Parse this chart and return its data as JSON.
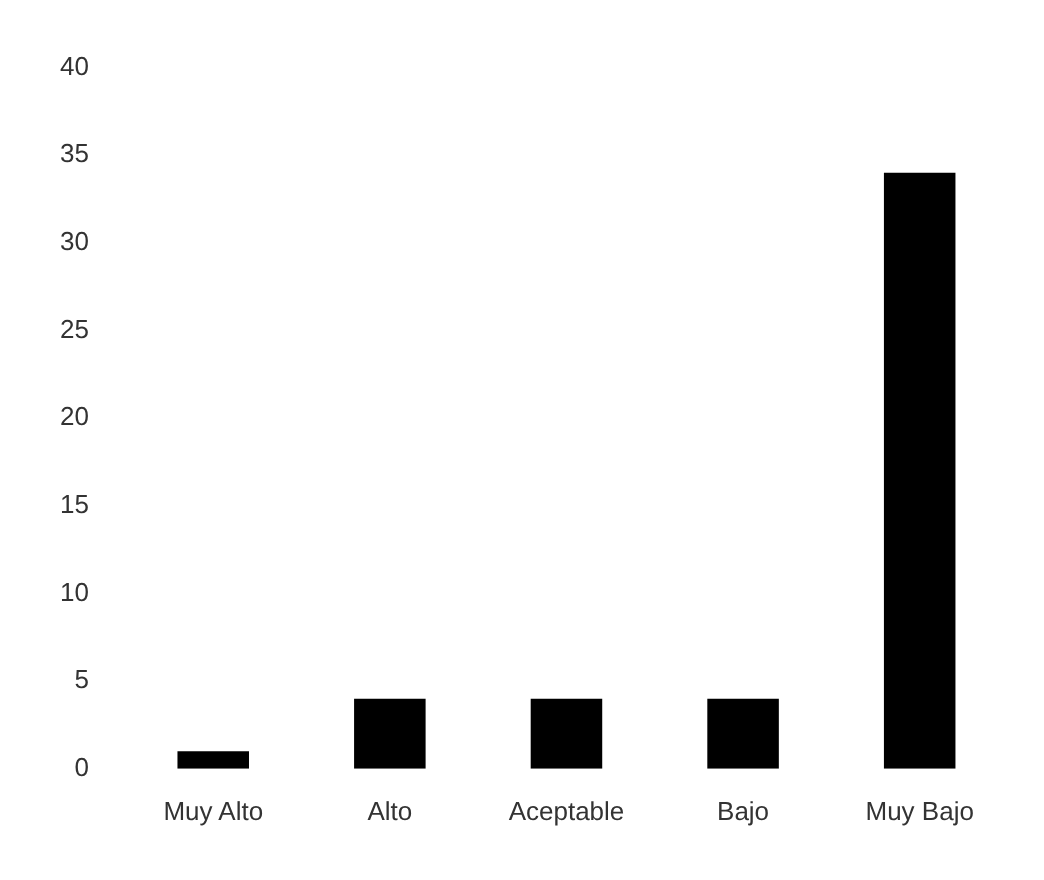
{
  "chart_data": {
    "type": "bar",
    "categories": [
      "Muy Alto",
      "Alto",
      "Aceptable",
      "Bajo",
      "Muy Bajo"
    ],
    "values": [
      1,
      4,
      4,
      4,
      34
    ],
    "color": "#000000",
    "ylim": [
      0,
      40
    ],
    "yticks": [
      0,
      5,
      10,
      15,
      20,
      25,
      30,
      35,
      40
    ],
    "grid": false,
    "legend": false
  }
}
